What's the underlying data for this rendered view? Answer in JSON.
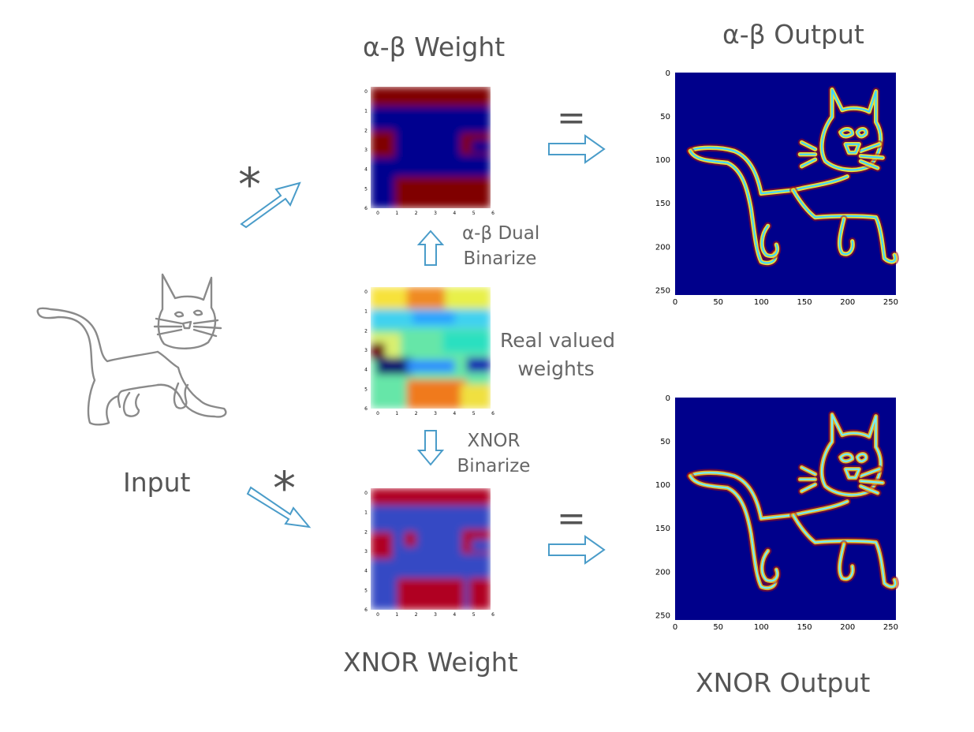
{
  "titles": {
    "ab_weight": "α-β Weight",
    "ab_output": "α-β Output",
    "xnor_weight": "XNOR Weight",
    "xnor_output": "XNOR Output",
    "input": "Input"
  },
  "operators": {
    "convolve": "*",
    "equals": "="
  },
  "side_labels": {
    "ab_dual_line1": "α-β Dual",
    "ab_dual_line2": "Binarize",
    "real_line1": "Real valued",
    "real_line2": "weights",
    "xnor_line1": "XNOR",
    "xnor_line2": "Binarize"
  },
  "weight_axes": {
    "x_ticks": [
      "0",
      "1",
      "2",
      "3",
      "4",
      "5",
      "6"
    ],
    "y_ticks": [
      "0",
      "1",
      "2",
      "3",
      "4",
      "5",
      "6"
    ]
  },
  "output_axes": {
    "x_ticks": [
      "0",
      "50",
      "100",
      "150",
      "200",
      "250"
    ],
    "y_ticks": [
      "0",
      "50",
      "100",
      "150",
      "200",
      "250"
    ]
  },
  "colors": {
    "arrow": "#4a9cc9",
    "jet_dark_red": "#800000",
    "jet_dark_blue": "#00008f",
    "xnor_red": "#b00022",
    "xnor_blue": "#3549c4",
    "output_background": "#00008b"
  }
}
